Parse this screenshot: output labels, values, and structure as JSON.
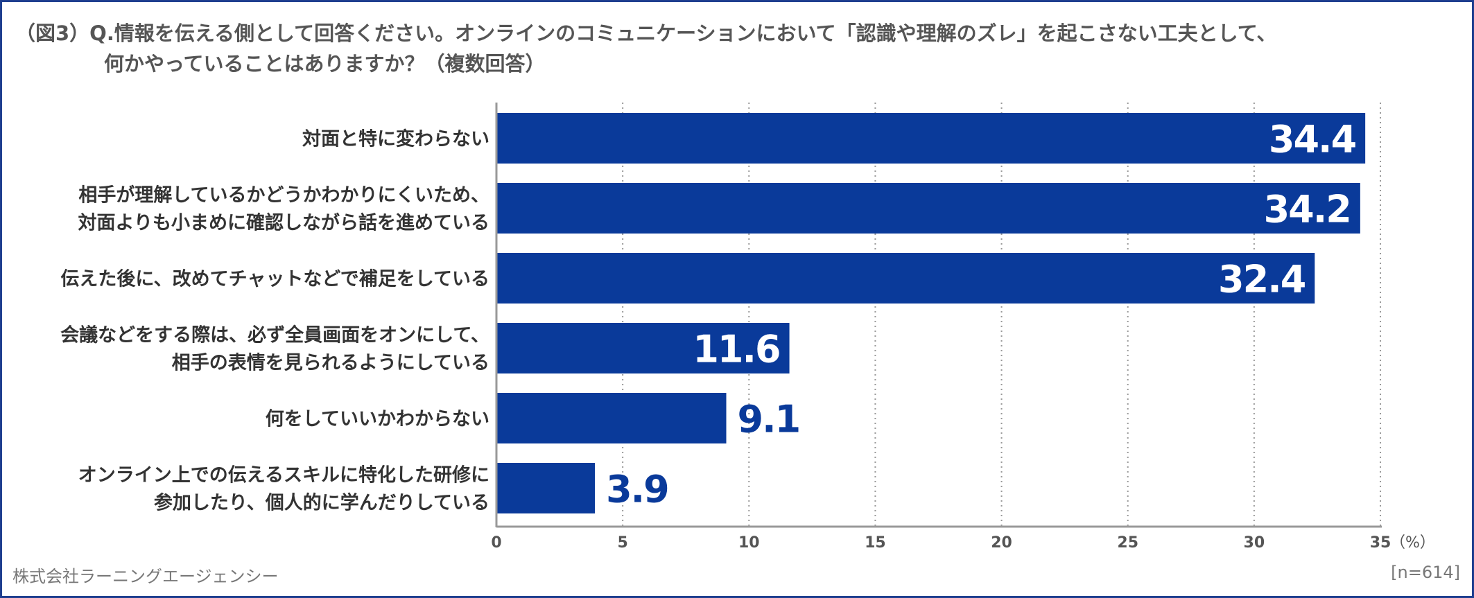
{
  "title": {
    "line1": "（図3）Q.情報を伝える側として回答ください。オンラインのコミュニケーションにおいて「認識や理解のズレ」を起こさない工夫として、",
    "line2": "何かやっていることはありますか？（複数回答）"
  },
  "footer": {
    "company": "株式会社ラーニングエージェンシー",
    "sample": "[n=614]"
  },
  "colors": {
    "bar": "#0a3a9a",
    "label_inside": "#ffffff",
    "label_outside": "#0a3a9a",
    "grid": "#999999",
    "axis": "#999999",
    "frame": "#1f3f8f"
  },
  "chart_data": {
    "type": "bar",
    "orientation": "horizontal",
    "categories": [
      [
        "対面と特に変わらない"
      ],
      [
        "相手が理解しているかどうかわかりにくいため、",
        "対面よりも小まめに確認しながら話を進めている"
      ],
      [
        "伝えた後に、改めてチャットなどで補足をしている"
      ],
      [
        "会議などをする際は、必ず全員画面をオンにして、",
        "相手の表情を見られるようにしている"
      ],
      [
        "何をしていいかわからない"
      ],
      [
        "オンライン上での伝えるスキルに特化した研修に",
        "参加したり、個人的に学んだりしている"
      ]
    ],
    "values": [
      34.4,
      34.2,
      32.4,
      11.6,
      9.1,
      3.9
    ],
    "value_labels": [
      "34.4",
      "34.2",
      "32.4",
      "11.6",
      "9.1",
      "3.9"
    ],
    "xlim": [
      0,
      35
    ],
    "xticks": [
      0,
      5,
      10,
      15,
      20,
      25,
      30,
      35
    ],
    "xtick_labels": [
      "0",
      "5",
      "10",
      "15",
      "20",
      "25",
      "30",
      "35"
    ],
    "unit": "（%）",
    "grid": "vertical dotted"
  }
}
